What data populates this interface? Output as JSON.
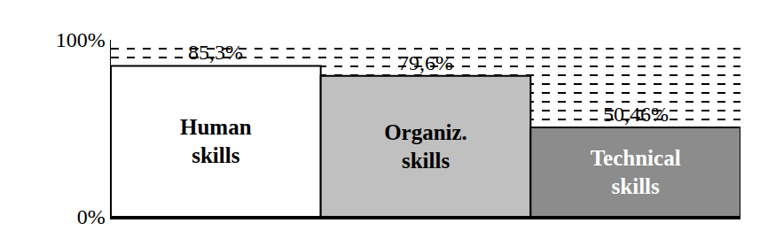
{
  "chart_data": {
    "type": "bar",
    "categories": [
      "Human skills",
      "Organiz. skills",
      "Technical skills"
    ],
    "values": [
      85.3,
      79.6,
      50.46
    ],
    "value_labels": [
      "85,3%",
      "79,6%",
      "50,46%"
    ],
    "colors": [
      "#ffffff",
      "#c0c0c0",
      "#8c8c8c"
    ],
    "ylim": [
      0,
      100
    ],
    "yticks": [
      {
        "value": 0,
        "label": "0%"
      },
      {
        "value": 100,
        "label": "100%"
      }
    ],
    "grid": true,
    "data_labels": true,
    "tick_labels": "y"
  }
}
